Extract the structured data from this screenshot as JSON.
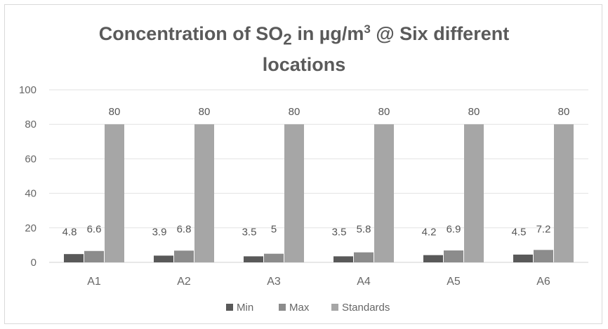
{
  "chart_data": {
    "type": "bar",
    "title_parts": {
      "before": "Concentration of SO",
      "sub": "2",
      "middle": " in µg/m",
      "sup": "3",
      "after": " @ Six different",
      "line2": "locations"
    },
    "categories": [
      "A1",
      "A2",
      "A3",
      "A4",
      "A5",
      "A6"
    ],
    "series": [
      {
        "name": "Min",
        "values": [
          4.8,
          3.9,
          3.5,
          3.5,
          4.2,
          4.5
        ],
        "color": "#595959"
      },
      {
        "name": "Max",
        "values": [
          6.6,
          6.8,
          5,
          5.8,
          6.9,
          7.2
        ],
        "color": "#8c8c8c"
      },
      {
        "name": "Standards",
        "values": [
          80,
          80,
          80,
          80,
          80,
          80
        ],
        "color": "#a6a6a6"
      }
    ],
    "data_labels": [
      [
        "4.8",
        "3.9",
        "3.5",
        "3.5",
        "4.2",
        "4.5"
      ],
      [
        "6.6",
        "6.8",
        "5",
        "5.8",
        "6.9",
        "7.2"
      ],
      [
        "80",
        "80",
        "80",
        "80",
        "80",
        "80"
      ]
    ],
    "y_ticks": [
      "0",
      "20",
      "40",
      "60",
      "80",
      "100"
    ],
    "ylim": [
      0,
      100
    ],
    "grid": true,
    "legend_position": "bottom"
  }
}
